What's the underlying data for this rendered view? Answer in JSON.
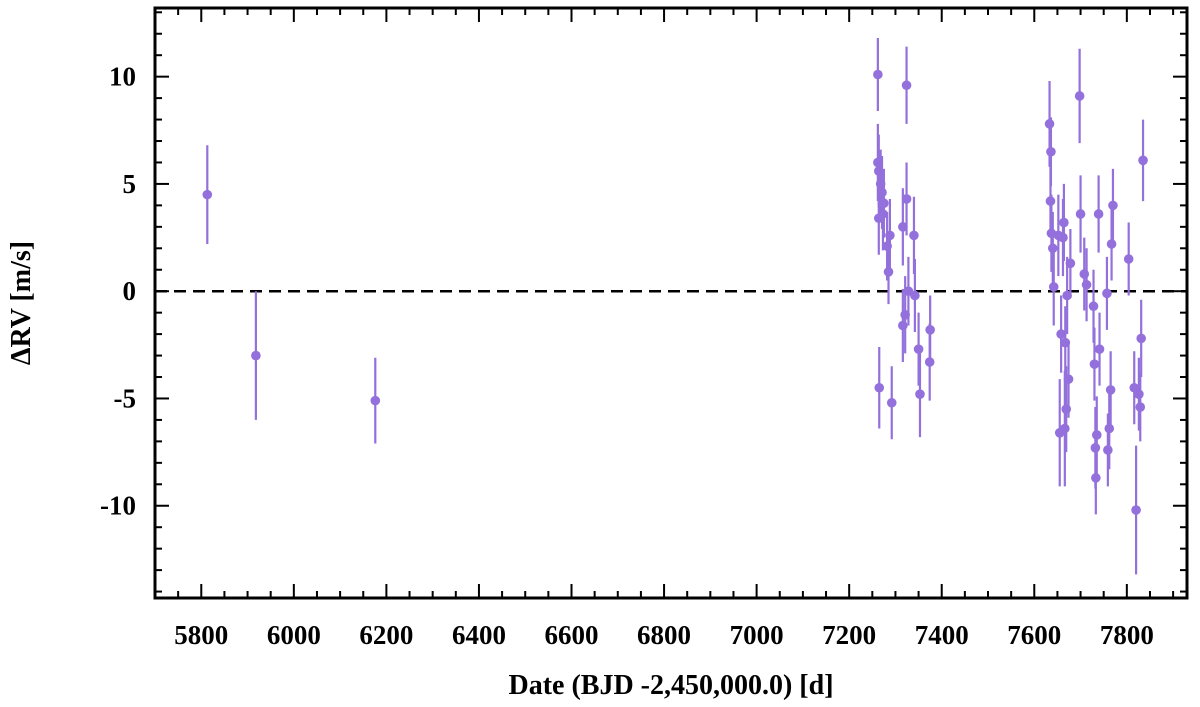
{
  "chart_data": {
    "type": "scatter",
    "xlabel": "Date (BJD -2,450,000.0) [d]",
    "ylabel": "ΔRV [m/s]",
    "xlim": [
      5700,
      7930
    ],
    "ylim": [
      -14.3,
      13.2
    ],
    "x_ticks": [
      5800,
      6000,
      6200,
      6400,
      6600,
      6800,
      7000,
      7200,
      7400,
      7600,
      7800
    ],
    "x_tick_labels": [
      "5800",
      "6000",
      "6200",
      "6400",
      "6600",
      "6800",
      "7000",
      "7200",
      "7400",
      "7600",
      "7800"
    ],
    "y_ticks": [
      -10,
      -5,
      0,
      5,
      10
    ],
    "y_tick_labels": [
      "-10",
      "-5",
      "0",
      "5",
      "10"
    ],
    "reference_line_y": 0,
    "grid": false,
    "legend": "none",
    "point_color": "#9370db",
    "points": [
      {
        "x": 5813,
        "y": 4.5,
        "err": 2.3
      },
      {
        "x": 5918,
        "y": -3.0,
        "err": 3.0
      },
      {
        "x": 6176,
        "y": -5.1,
        "err": 2.0
      },
      {
        "x": 7262,
        "y": 10.1,
        "err": 1.7
      },
      {
        "x": 7262,
        "y": 6.0,
        "err": 1.8
      },
      {
        "x": 7264,
        "y": 5.6,
        "err": 1.7
      },
      {
        "x": 7264,
        "y": 3.4,
        "err": 1.7
      },
      {
        "x": 7265,
        "y": -4.5,
        "err": 1.9
      },
      {
        "x": 7268,
        "y": 5.0,
        "err": 1.6
      },
      {
        "x": 7271,
        "y": 4.6,
        "err": 1.7
      },
      {
        "x": 7273,
        "y": 3.6,
        "err": 1.7
      },
      {
        "x": 7275,
        "y": 4.1,
        "err": 1.6
      },
      {
        "x": 7282,
        "y": 2.1,
        "err": 1.6
      },
      {
        "x": 7285,
        "y": 0.9,
        "err": 1.5
      },
      {
        "x": 7288,
        "y": 2.6,
        "err": 1.7
      },
      {
        "x": 7292,
        "y": -5.2,
        "err": 1.7
      },
      {
        "x": 7316,
        "y": 3.0,
        "err": 1.8
      },
      {
        "x": 7316,
        "y": -1.6,
        "err": 1.7
      },
      {
        "x": 7321,
        "y": -1.1,
        "err": 1.8
      },
      {
        "x": 7324,
        "y": 9.6,
        "err": 1.8
      },
      {
        "x": 7324,
        "y": 4.3,
        "err": 1.7
      },
      {
        "x": 7328,
        "y": 0.0,
        "err": 1.6
      },
      {
        "x": 7340,
        "y": 2.6,
        "err": 1.8
      },
      {
        "x": 7342,
        "y": -0.2,
        "err": 1.7
      },
      {
        "x": 7350,
        "y": -2.7,
        "err": 1.7
      },
      {
        "x": 7353,
        "y": -4.8,
        "err": 2.0
      },
      {
        "x": 7374,
        "y": -3.3,
        "err": 1.8
      },
      {
        "x": 7375,
        "y": -1.8,
        "err": 1.6
      },
      {
        "x": 7633,
        "y": 7.8,
        "err": 2.0
      },
      {
        "x": 7635,
        "y": 4.2,
        "err": 1.7
      },
      {
        "x": 7636,
        "y": 6.5,
        "err": 1.6
      },
      {
        "x": 7637,
        "y": 2.7,
        "err": 1.8
      },
      {
        "x": 7640,
        "y": 2.0,
        "err": 1.7
      },
      {
        "x": 7642,
        "y": 0.2,
        "err": 1.8
      },
      {
        "x": 7652,
        "y": 2.6,
        "err": 1.9
      },
      {
        "x": 7655,
        "y": -6.6,
        "err": 2.5
      },
      {
        "x": 7658,
        "y": -2.0,
        "err": 1.8
      },
      {
        "x": 7662,
        "y": 2.5,
        "err": 1.8
      },
      {
        "x": 7664,
        "y": 3.2,
        "err": 1.8
      },
      {
        "x": 7666,
        "y": -6.4,
        "err": 2.7
      },
      {
        "x": 7667,
        "y": -2.4,
        "err": 1.7
      },
      {
        "x": 7669,
        "y": -5.5,
        "err": 2.0
      },
      {
        "x": 7671,
        "y": -0.2,
        "err": 1.8
      },
      {
        "x": 7674,
        "y": -4.1,
        "err": 1.8
      },
      {
        "x": 7678,
        "y": 1.3,
        "err": 1.6
      },
      {
        "x": 7698,
        "y": 9.1,
        "err": 2.2
      },
      {
        "x": 7700,
        "y": 3.6,
        "err": 1.8
      },
      {
        "x": 7708,
        "y": 0.8,
        "err": 1.7
      },
      {
        "x": 7713,
        "y": 0.3,
        "err": 1.7
      },
      {
        "x": 7728,
        "y": -0.7,
        "err": 1.7
      },
      {
        "x": 7730,
        "y": -3.4,
        "err": 1.7
      },
      {
        "x": 7732,
        "y": -7.3,
        "err": 1.9
      },
      {
        "x": 7733,
        "y": -8.7,
        "err": 1.7
      },
      {
        "x": 7735,
        "y": -6.7,
        "err": 1.8
      },
      {
        "x": 7739,
        "y": 3.6,
        "err": 1.8
      },
      {
        "x": 7741,
        "y": -2.7,
        "err": 1.7
      },
      {
        "x": 7757,
        "y": -0.1,
        "err": 1.7
      },
      {
        "x": 7759,
        "y": -7.4,
        "err": 1.7
      },
      {
        "x": 7762,
        "y": -6.4,
        "err": 1.9
      },
      {
        "x": 7765,
        "y": -4.6,
        "err": 1.8
      },
      {
        "x": 7767,
        "y": 2.2,
        "err": 1.7
      },
      {
        "x": 7770,
        "y": 4.0,
        "err": 1.7
      },
      {
        "x": 7804,
        "y": 1.5,
        "err": 1.7
      },
      {
        "x": 7816,
        "y": -4.5,
        "err": 1.7
      },
      {
        "x": 7820,
        "y": -10.2,
        "err": 3.0
      },
      {
        "x": 7826,
        "y": -4.8,
        "err": 1.7
      },
      {
        "x": 7829,
        "y": -5.4,
        "err": 1.6
      },
      {
        "x": 7831,
        "y": -2.2,
        "err": 1.8
      },
      {
        "x": 7835,
        "y": 6.1,
        "err": 1.9
      }
    ]
  }
}
